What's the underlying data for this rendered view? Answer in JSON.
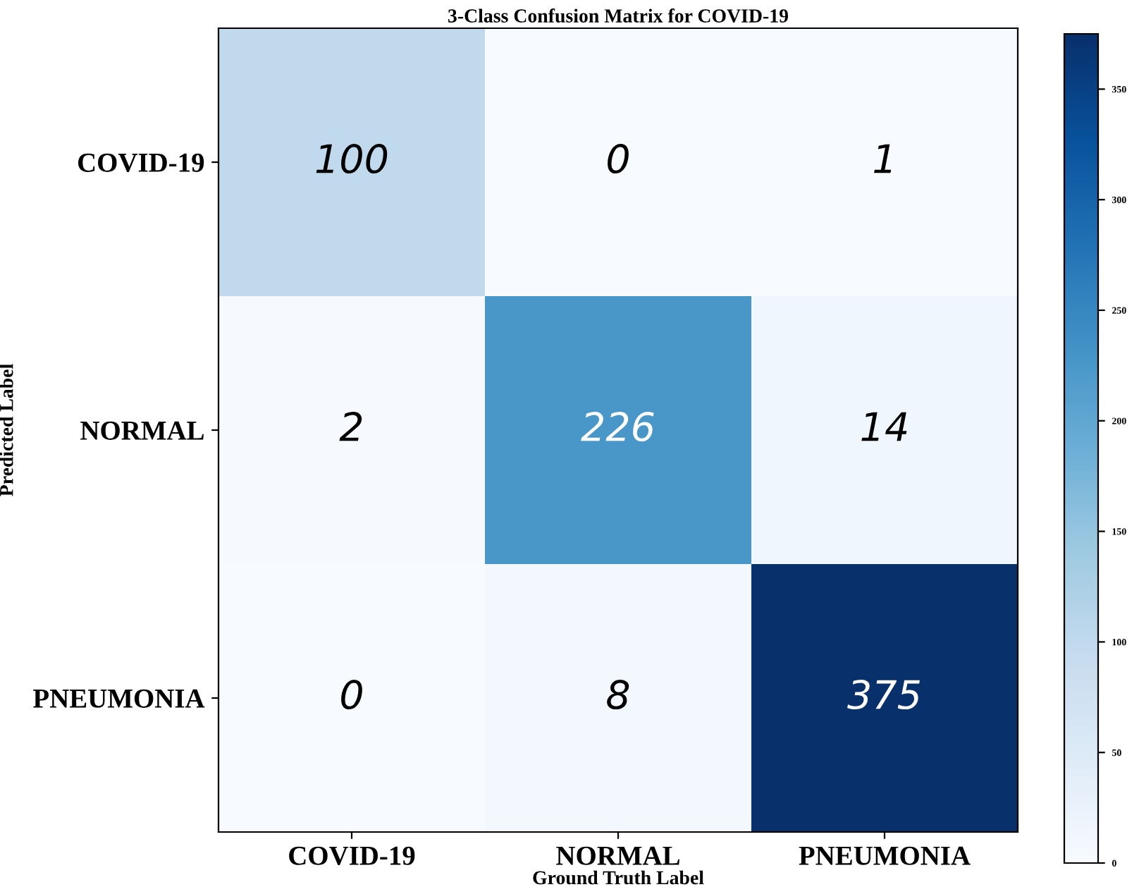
{
  "chart_data": {
    "type": "heatmap",
    "title": "3-Class Confusion Matrix for COVID-19",
    "xlabel": "Ground Truth Label",
    "ylabel": "Predicted Label",
    "categories": [
      "COVID-19",
      "NORMAL",
      "PNEUMONIA"
    ],
    "y_categories": [
      "COVID-19",
      "NORMAL",
      "PNEUMONIA"
    ],
    "cells": [
      [
        100,
        0,
        1
      ],
      [
        2,
        226,
        14
      ],
      [
        0,
        8,
        375
      ]
    ],
    "data_labels": true,
    "clim": [
      0,
      375
    ],
    "cticks": [
      0,
      50,
      100,
      150,
      200,
      250,
      300,
      350
    ]
  }
}
